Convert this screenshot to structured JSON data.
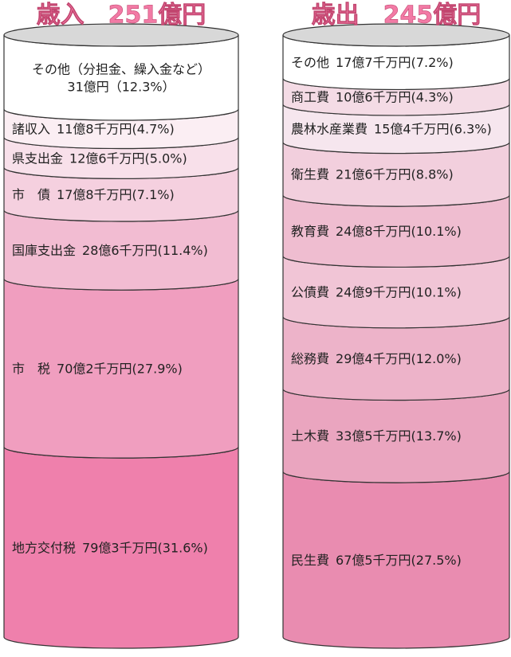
{
  "chart_data": [
    {
      "type": "cylinder",
      "title": "歳入　251億円",
      "categories": [
        "その他（分担金、繰入金など）",
        "諸収入",
        "県支出金",
        "市　債",
        "国庫支出金",
        "市　税",
        "地方交付税"
      ],
      "values": [
        12.3,
        4.7,
        5.0,
        7.1,
        11.4,
        27.9,
        31.6
      ],
      "value_labels": [
        "31億円（12.3%）",
        "11億8千万円(4.7%)",
        "12億6千万円(5.0%)",
        "17億8千万円(7.1%)",
        "28億6千万円(11.4%)",
        "70億2千万円(27.9%)",
        "79億3千万円(31.6%)"
      ],
      "colors": [
        "#ffffff",
        "#fbeef3",
        "#f8e0ea",
        "#f5d0df",
        "#f2bcd2",
        "#f09ebf",
        "#ef80ac"
      ]
    },
    {
      "type": "cylinder",
      "title": "歳出　245億円",
      "categories": [
        "その他",
        "商工費",
        "農林水産業費",
        "衛生費",
        "教育費",
        "公債費",
        "総務費",
        "土木費",
        "民生費"
      ],
      "values": [
        7.2,
        4.3,
        6.3,
        8.8,
        10.1,
        10.1,
        12.0,
        13.7,
        27.5
      ],
      "value_labels": [
        "17億7千万円(7.2%)",
        "10億6千万円(4.3%)",
        "15億4千万円(6.3%)",
        "21億6千万円(8.8%)",
        "24億8千万円(10.1%)",
        "24億9千万円(10.1%)",
        "29億4千万円(12.0%)",
        "33億5千万円(13.7%)",
        "67億5千万円(27.5%)"
      ],
      "colors": [
        "#ffffff",
        "#f4dbe5",
        "#f6e6ee",
        "#f2cfdd",
        "#efbdd0",
        "#f1c5d6",
        "#edb3c9",
        "#eaa5bf",
        "#e98cb0"
      ]
    }
  ]
}
